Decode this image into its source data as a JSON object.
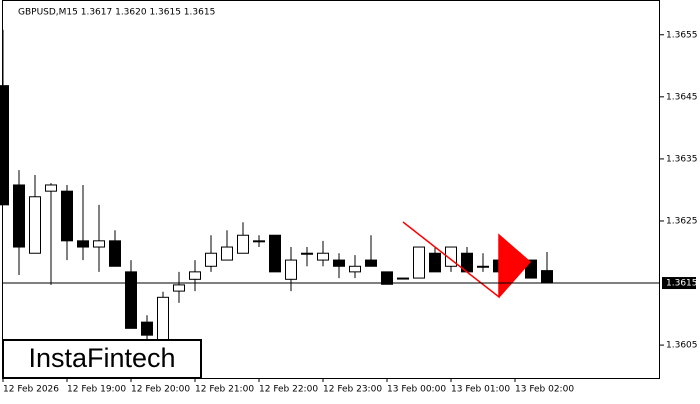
{
  "chart_data": {
    "type": "candlestick",
    "title": "GBPUSD,M15  1.3617 1.3620 1.3615 1.3615",
    "categories": [
      "12 Feb 2026",
      null,
      null,
      null,
      "12 Feb 19:00",
      null,
      null,
      null,
      "12 Feb 20:00",
      null,
      null,
      null,
      "12 Feb 21:00",
      null,
      null,
      null,
      "12 Feb 22:00",
      null,
      null,
      null,
      "12 Feb 23:00",
      null,
      null,
      null,
      "13 Feb 00:00",
      null,
      null,
      null,
      "13 Feb 01:00",
      null,
      null,
      null,
      "13 Feb 02:00",
      null,
      null
    ],
    "open": [
      1.36468,
      1.36308,
      1.36198,
      1.36298,
      1.36298,
      1.36218,
      1.36208,
      1.36218,
      1.36168,
      1.36087,
      1.36058,
      1.36137,
      1.36156,
      1.36177,
      1.36187,
      1.36198,
      1.36218,
      1.36227,
      1.36156,
      1.36198,
      1.36187,
      1.36187,
      1.36168,
      1.36187,
      1.36168,
      1.36158,
      1.36158,
      1.36198,
      1.36177,
      1.36198,
      1.36177,
      1.36187,
      1.36177,
      1.36187,
      1.3617
    ],
    "high": [
      1.36558,
      1.36332,
      1.36324,
      1.36311,
      1.36308,
      1.36308,
      1.36276,
      1.36235,
      1.36187,
      1.36098,
      1.36136,
      1.36168,
      1.36187,
      1.36227,
      1.36235,
      1.36248,
      1.36227,
      1.36227,
      1.36208,
      1.36208,
      1.36218,
      1.36198,
      1.36195,
      1.36227,
      1.36168,
      1.36158,
      1.36208,
      1.36208,
      1.36208,
      1.36208,
      1.36198,
      1.36198,
      1.36198,
      1.36187,
      1.362
    ],
    "low": [
      1.36276,
      1.36163,
      1.36198,
      1.36147,
      1.36187,
      1.36187,
      1.36168,
      1.36177,
      1.36077,
      1.36058,
      1.36058,
      1.36118,
      1.36137,
      1.36168,
      1.36187,
      1.36198,
      1.36208,
      1.36168,
      1.36137,
      1.36177,
      1.36177,
      1.36158,
      1.36158,
      1.36177,
      1.36148,
      1.36158,
      1.36158,
      1.36168,
      1.36168,
      1.36168,
      1.36168,
      1.36147,
      1.36177,
      1.36158,
      1.3615
    ],
    "close": [
      1.36276,
      1.36208,
      1.36289,
      1.36308,
      1.36218,
      1.36208,
      1.36218,
      1.36177,
      1.36077,
      1.36066,
      1.36127,
      1.36147,
      1.36168,
      1.36198,
      1.36208,
      1.36227,
      1.36218,
      1.36168,
      1.36187,
      1.36198,
      1.36198,
      1.36177,
      1.36177,
      1.36177,
      1.36148,
      1.36158,
      1.36208,
      1.36168,
      1.36208,
      1.36168,
      1.36177,
      1.36168,
      1.36198,
      1.36158,
      1.3615
    ],
    "up_color": "#ffffff",
    "down_color": "#000000",
    "ylim": [
      1.35997,
      1.36606
    ],
    "yticks": [
      1.3605,
      1.3625,
      1.3635,
      1.3645,
      1.3655
    ],
    "current_price": 1.3615,
    "watermark": "InstaFintech"
  }
}
